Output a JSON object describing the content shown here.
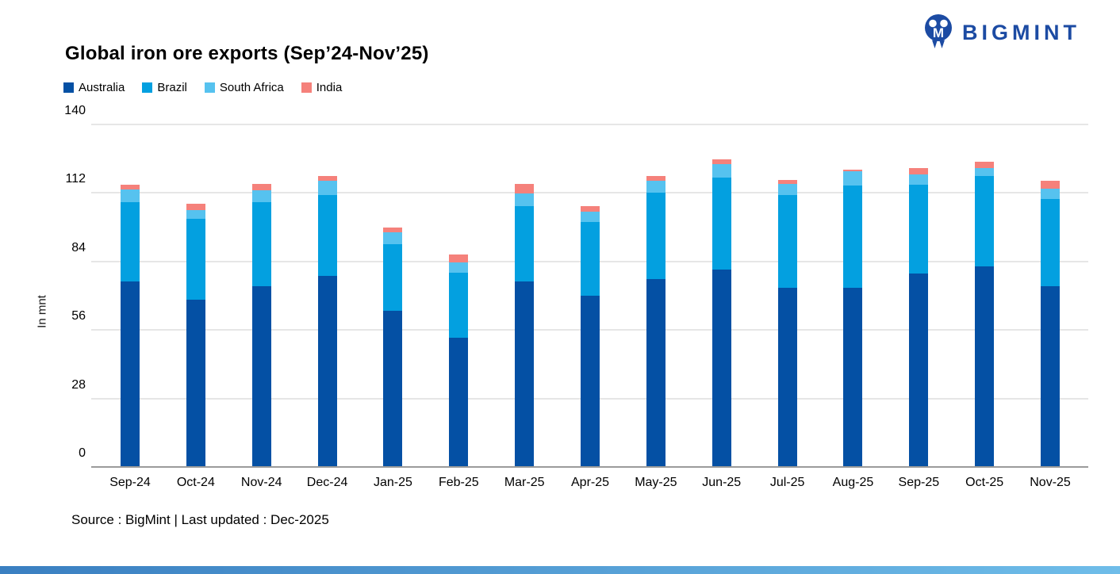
{
  "header": {
    "title": "Global iron ore exports (Sep’24-Nov’25)",
    "logo_text": "BIGMINT",
    "logo_color": "#1c4ba3"
  },
  "chart_data": {
    "type": "bar",
    "stacked": true,
    "title": "Global iron ore exports (Sep’24-Nov’25)",
    "xlabel": "",
    "ylabel": "In mnt",
    "ylim": [
      0,
      140
    ],
    "yticks": [
      0,
      28,
      56,
      84,
      112,
      140
    ],
    "grid": true,
    "legend_position": "top-left",
    "categories": [
      "Sep-24",
      "Oct-24",
      "Nov-24",
      "Dec-24",
      "Jan-25",
      "Feb-25",
      "Mar-25",
      "Apr-25",
      "May-25",
      "Jun-25",
      "Jul-25",
      "Aug-25",
      "Sep-25",
      "Oct-25",
      "Nov-25"
    ],
    "series": [
      {
        "name": "Australia",
        "key": "australia",
        "color": "#0450a4",
        "values": [
          76.0,
          68.4,
          74.0,
          78.0,
          63.8,
          52.7,
          75.8,
          69.9,
          76.7,
          80.7,
          73.4,
          73.1,
          79.1,
          81.9,
          73.8
        ]
      },
      {
        "name": "Brazil",
        "key": "brazil",
        "color": "#03a0e0",
        "values": [
          32.3,
          33.1,
          34.3,
          33.1,
          27.4,
          26.7,
          30.9,
          30.2,
          35.4,
          37.6,
          37.7,
          41.9,
          36.2,
          37.0,
          35.6
        ]
      },
      {
        "name": "South Africa",
        "key": "south-africa",
        "color": "#56c2ef",
        "values": [
          5.1,
          3.5,
          4.9,
          5.8,
          4.6,
          4.3,
          5.1,
          4.3,
          4.8,
          5.4,
          4.5,
          5.8,
          4.4,
          3.3,
          4.4
        ]
      },
      {
        "name": "India",
        "key": "india",
        "color": "#f5817b",
        "values": [
          2.0,
          2.5,
          2.4,
          1.9,
          2.2,
          3.0,
          3.8,
          2.3,
          2.2,
          1.9,
          1.6,
          0.7,
          2.6,
          2.6,
          3.1
        ]
      }
    ]
  },
  "footer": {
    "source": "Source : BigMint | Last updated : Dec-2025"
  },
  "style": {
    "gridline_color": "#e6e6e6",
    "axis_line_color": "#9b9b9b"
  }
}
